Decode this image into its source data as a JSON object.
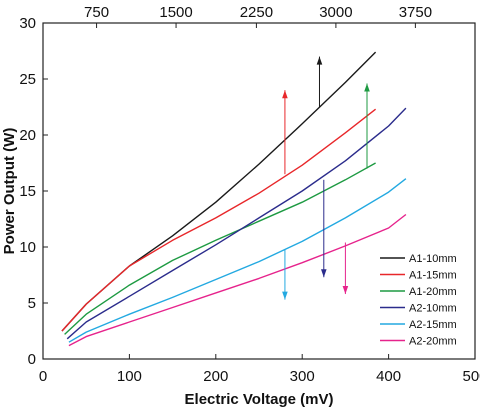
{
  "chart_data": {
    "type": "line",
    "xlabel": "Electric Voltage (mV)",
    "ylabel": "Power Output (W)",
    "xlim": [
      0,
      500
    ],
    "ylim": [
      0,
      30
    ],
    "x_ticks": [
      0,
      100,
      200,
      300,
      400,
      500
    ],
    "y_ticks": [
      0,
      5,
      10,
      15,
      20,
      25,
      30
    ],
    "top_axis": {
      "ticks": [
        750,
        1500,
        2250,
        3000,
        3750
      ],
      "tick_positions_bottom_units": [
        62,
        154,
        247,
        339,
        431
      ]
    },
    "grid": false,
    "legend_position": "bottom-right",
    "series": [
      {
        "name": "A1-10mm",
        "color": "#1a1a1a",
        "x": [
          22,
          50,
          100,
          150,
          200,
          250,
          300,
          350,
          385
        ],
        "y": [
          2.5,
          4.9,
          8.3,
          11.0,
          14.0,
          17.4,
          21.0,
          24.7,
          27.4
        ]
      },
      {
        "name": "A1-15mm",
        "color": "#e8272a",
        "x": [
          22,
          50,
          100,
          150,
          200,
          250,
          300,
          350,
          385
        ],
        "y": [
          2.5,
          4.9,
          8.3,
          10.6,
          12.6,
          14.8,
          17.3,
          20.2,
          22.3
        ]
      },
      {
        "name": "A1-20mm",
        "color": "#1d9a42",
        "x": [
          25,
          50,
          100,
          150,
          200,
          250,
          300,
          350,
          385
        ],
        "y": [
          2.2,
          4.0,
          6.6,
          8.8,
          10.6,
          12.3,
          14.0,
          16.0,
          17.5
        ]
      },
      {
        "name": "A2-10mm",
        "color": "#2b2c8c",
        "x": [
          28,
          50,
          100,
          150,
          200,
          250,
          300,
          350,
          400,
          420
        ],
        "y": [
          1.8,
          3.3,
          5.6,
          7.9,
          10.2,
          12.6,
          15.0,
          17.7,
          20.8,
          22.4
        ]
      },
      {
        "name": "A2-15mm",
        "color": "#23a9e1",
        "x": [
          30,
          50,
          100,
          150,
          200,
          250,
          300,
          350,
          400,
          420
        ],
        "y": [
          1.5,
          2.4,
          4.0,
          5.5,
          7.1,
          8.7,
          10.5,
          12.6,
          14.9,
          16.1
        ]
      },
      {
        "name": "A2-20mm",
        "color": "#e6238c",
        "x": [
          30,
          50,
          100,
          150,
          200,
          250,
          300,
          350,
          400,
          420
        ],
        "y": [
          1.2,
          2.0,
          3.3,
          4.6,
          5.9,
          7.2,
          8.6,
          10.1,
          11.7,
          12.9
        ]
      }
    ],
    "annotations": [
      {
        "type": "arrow",
        "color": "#1a1a1a",
        "x": 320,
        "y_from": 22.5,
        "y_to": 27.0
      },
      {
        "type": "arrow",
        "color": "#e8272a",
        "x": 280,
        "y_from": 16.5,
        "y_to": 24.0
      },
      {
        "type": "arrow",
        "color": "#1d9a42",
        "x": 375,
        "y_from": 17.0,
        "y_to": 24.6
      },
      {
        "type": "arrow",
        "color": "#2b2c8c",
        "x": 325,
        "y_from": 16.0,
        "y_to": 7.3
      },
      {
        "type": "arrow",
        "color": "#23a9e1",
        "x": 280,
        "y_from": 9.8,
        "y_to": 5.3
      },
      {
        "type": "arrow",
        "color": "#e6238c",
        "x": 350,
        "y_from": 10.4,
        "y_to": 5.8
      }
    ]
  }
}
